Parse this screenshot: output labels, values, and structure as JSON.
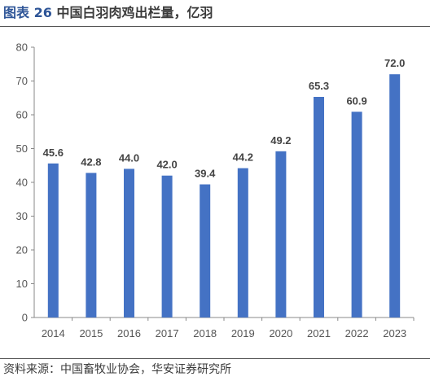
{
  "header": {
    "title_prefix": "图表",
    "title_num": "26",
    "title_text": "中国白羽肉鸡出栏量，亿羽"
  },
  "footer": {
    "source": "资料来源：中国畜牧业协会，华安证券研究所"
  },
  "chart_data": {
    "type": "bar",
    "title": "中国白羽肉鸡出栏量，亿羽",
    "categories": [
      "2014",
      "2015",
      "2016",
      "2017",
      "2018",
      "2019",
      "2020",
      "2021",
      "2022",
      "2023"
    ],
    "values": [
      45.6,
      42.8,
      44.0,
      42.0,
      39.4,
      44.2,
      49.2,
      65.3,
      60.9,
      72.0
    ],
    "value_labels": [
      "45.6",
      "42.8",
      "44.0",
      "42.0",
      "39.4",
      "44.2",
      "49.2",
      "65.3",
      "60.9",
      "72.0"
    ],
    "ylim": [
      0,
      80
    ],
    "yticks": [
      "0",
      "10",
      "20",
      "30",
      "40",
      "50",
      "60",
      "70",
      "80"
    ],
    "xlabel": "",
    "ylabel": "",
    "grid": false,
    "bar_color": "#4472c4"
  }
}
